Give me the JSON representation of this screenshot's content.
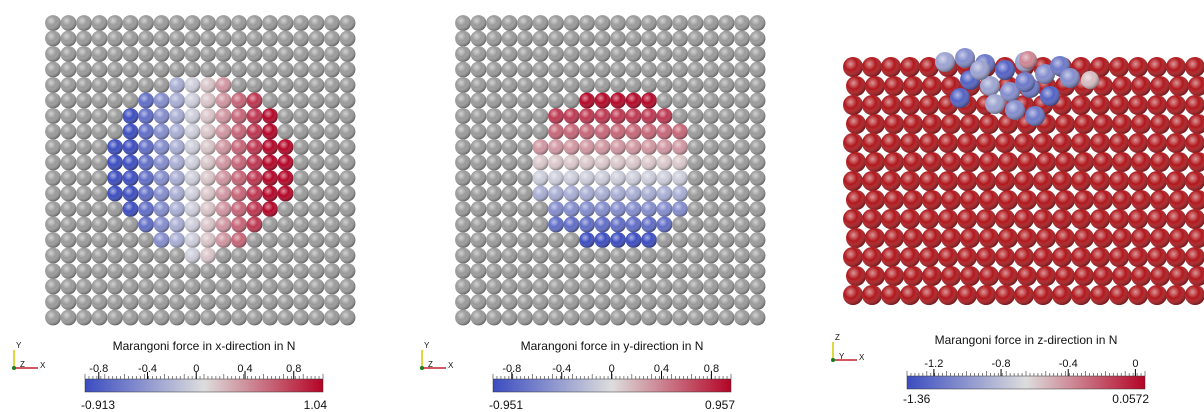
{
  "panels": [
    {
      "title": "Marangoni force in x-direction in N",
      "ticks": [
        -0.8,
        -0.4,
        0,
        0.4,
        0.8
      ],
      "min": -0.913,
      "max": 1.04,
      "axes": [
        "Y",
        "Z",
        "X"
      ]
    },
    {
      "title": "Marangoni force in y-direction in N",
      "ticks": [
        -0.8,
        -0.4,
        0,
        0.4,
        0.8
      ],
      "min": -0.951,
      "max": 0.957,
      "axes": [
        "Y",
        "Z",
        "X"
      ]
    },
    {
      "title": "Marangoni force in z-direction in N",
      "ticks": [
        -1.2,
        -0.8,
        -0.4,
        0
      ],
      "min": -1.36,
      "max": 0.0572,
      "axes": [
        "Z",
        "Y",
        "X"
      ]
    }
  ]
}
